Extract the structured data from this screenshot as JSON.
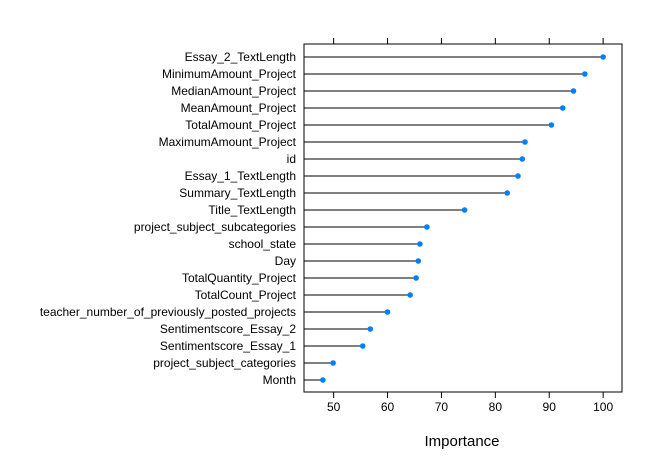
{
  "chart_data": {
    "type": "scatter",
    "style": "dot-plot with lollipop stems",
    "xlabel": "Importance",
    "ylabel": "",
    "title": "",
    "xlim": [
      44.5,
      103.5
    ],
    "xticks": [
      "50",
      "60",
      "70",
      "80",
      "90",
      "100"
    ],
    "grid": false,
    "point_color": "#0080ff",
    "stem_color": "#000000",
    "categories": [
      "Essay_2_TextLength",
      "MinimumAmount_Project",
      "MedianAmount_Project",
      "MeanAmount_Project",
      "TotalAmount_Project",
      "MaximumAmount_Project",
      "id",
      "Essay_1_TextLength",
      "Summary_TextLength",
      "Title_TextLength",
      "project_subject_subcategories",
      "school_state",
      "Day",
      "TotalQuantity_Project",
      "TotalCount_Project",
      "teacher_number_of_previously_posted_projects",
      "Sentimentscore_Essay_2",
      "Sentimentscore_Essay_1",
      "project_subject_categories",
      "Month"
    ],
    "values": [
      100,
      96.6,
      94.5,
      92.5,
      90.4,
      85.5,
      85.0,
      84.2,
      82.2,
      74.3,
      67.3,
      66.0,
      65.7,
      65.3,
      64.2,
      60.0,
      56.8,
      55.4,
      49.9,
      48.0
    ]
  }
}
